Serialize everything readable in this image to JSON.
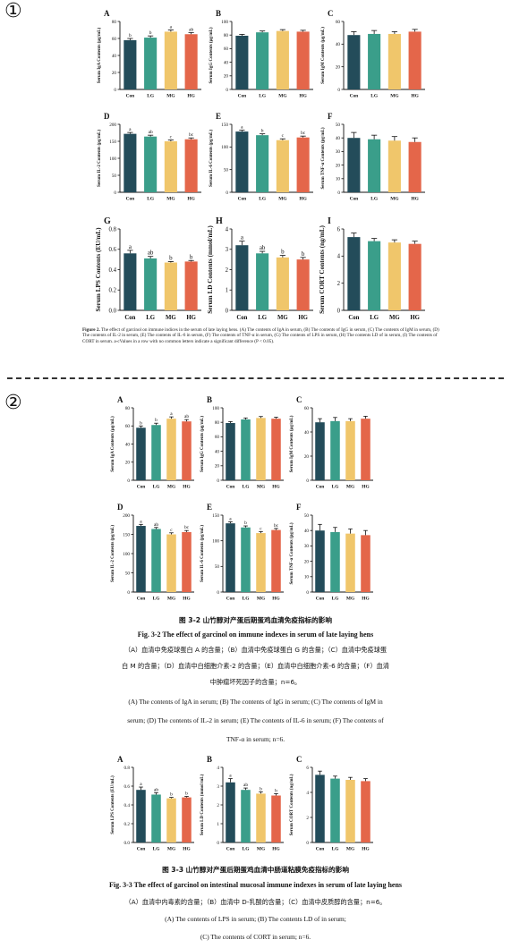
{
  "section1": {
    "marker": "①"
  },
  "section2": {
    "marker": "②"
  },
  "colors": [
    "#234c5a",
    "#3a9e8a",
    "#f0c66b",
    "#e4664a"
  ],
  "chart_data": [
    {
      "panel": "A",
      "group": "s1",
      "type": "bar",
      "ylabel": "Serum IgA Contents (μg/mL)",
      "categories": [
        "Con",
        "LG",
        "MG",
        "HG"
      ],
      "values": [
        58,
        61,
        68,
        65
      ],
      "errors": [
        2,
        2,
        2,
        2
      ],
      "letters": [
        "b",
        "b",
        "a",
        "ab"
      ],
      "ylim": [
        0,
        80
      ],
      "ticks": [
        0,
        20,
        40,
        60,
        80
      ]
    },
    {
      "panel": "B",
      "group": "s1",
      "type": "bar",
      "ylabel": "Serum IgG Contents (μg/mL)",
      "categories": [
        "Con",
        "LG",
        "MG",
        "HG"
      ],
      "values": [
        79,
        84,
        86,
        85
      ],
      "errors": [
        2,
        2,
        2,
        2
      ],
      "letters": [
        "",
        "",
        "",
        ""
      ],
      "ylim": [
        0,
        100
      ],
      "ticks": [
        0,
        20,
        40,
        60,
        80,
        100
      ]
    },
    {
      "panel": "C",
      "group": "s1",
      "type": "bar",
      "ylabel": "Serum IgM Contents (μg/mL)",
      "categories": [
        "Con",
        "LG",
        "MG",
        "HG"
      ],
      "values": [
        48,
        49,
        49,
        51
      ],
      "errors": [
        3,
        3,
        2,
        2
      ],
      "letters": [
        "",
        "",
        "",
        ""
      ],
      "ylim": [
        0,
        60
      ],
      "ticks": [
        0,
        20,
        40,
        60
      ]
    },
    {
      "panel": "D",
      "group": "s1",
      "type": "bar",
      "ylabel": "Serum IL-2 Contents (pg/mL)",
      "categories": [
        "Con",
        "LG",
        "MG",
        "HG"
      ],
      "values": [
        172,
        164,
        150,
        156
      ],
      "errors": [
        4,
        4,
        4,
        4
      ],
      "letters": [
        "a",
        "ab",
        "c",
        "bc"
      ],
      "ylim": [
        0,
        200
      ],
      "ticks": [
        0,
        50,
        100,
        150,
        200
      ]
    },
    {
      "panel": "E",
      "group": "s1",
      "type": "bar",
      "ylabel": "Serum IL-6 Contents (pg/mL)",
      "categories": [
        "Con",
        "LG",
        "MG",
        "HG"
      ],
      "values": [
        134,
        126,
        115,
        121
      ],
      "errors": [
        3,
        3,
        3,
        3
      ],
      "letters": [
        "a",
        "b",
        "c",
        "bc"
      ],
      "ylim": [
        0,
        150
      ],
      "ticks": [
        0,
        50,
        100,
        150
      ]
    },
    {
      "panel": "F",
      "group": "s1",
      "type": "bar",
      "ylabel": "Serum TNF-α Contents (pg/mL)",
      "categories": [
        "Con",
        "LG",
        "MG",
        "HG"
      ],
      "values": [
        40,
        39,
        38,
        37
      ],
      "errors": [
        4,
        3,
        3,
        3
      ],
      "letters": [
        "",
        "",
        "",
        ""
      ],
      "ylim": [
        0,
        50
      ],
      "ticks": [
        0,
        10,
        20,
        30,
        40,
        50
      ]
    },
    {
      "panel": "G",
      "group": "s1",
      "type": "bar",
      "ylabel": "Serum LPS Contents (EU/mL)",
      "categories": [
        "Con",
        "LG",
        "MG",
        "HG"
      ],
      "values": [
        0.56,
        0.51,
        0.47,
        0.48
      ],
      "errors": [
        0.03,
        0.02,
        0.01,
        0.01
      ],
      "letters": [
        "a",
        "ab",
        "b",
        "b"
      ],
      "ylim": [
        0,
        0.8
      ],
      "ticks": [
        "0.0",
        "0.2",
        "0.4",
        "0.6",
        "0.8"
      ]
    },
    {
      "panel": "H",
      "group": "s1",
      "type": "bar",
      "ylabel": "Serum LD Contents (mmol/mL)",
      "categories": [
        "Con",
        "LG",
        "MG",
        "HG"
      ],
      "values": [
        3.2,
        2.8,
        2.6,
        2.5
      ],
      "errors": [
        0.2,
        0.1,
        0.1,
        0.1
      ],
      "letters": [
        "a",
        "ab",
        "b",
        "b"
      ],
      "ylim": [
        0,
        4
      ],
      "ticks": [
        0,
        1,
        2,
        3,
        4
      ]
    },
    {
      "panel": "I",
      "group": "s1",
      "type": "bar",
      "ylabel": "Serum CORT Contents (ng/mL)",
      "categories": [
        "Con",
        "LG",
        "MG",
        "HG"
      ],
      "values": [
        5.4,
        5.1,
        5.0,
        4.9
      ],
      "errors": [
        0.3,
        0.2,
        0.2,
        0.2
      ],
      "letters": [
        "",
        "",
        "",
        ""
      ],
      "ylim": [
        0,
        6
      ],
      "ticks": [
        0,
        2,
        4,
        6
      ]
    },
    {
      "panel": "A",
      "group": "s2a",
      "type": "bar",
      "ylabel": "Serum IgA Contents (μg/mL)",
      "categories": [
        "Con",
        "LG",
        "MG",
        "HG"
      ],
      "values": [
        58,
        61,
        68,
        65
      ],
      "errors": [
        2,
        2,
        2,
        2
      ],
      "letters": [
        "b",
        "b",
        "a",
        "ab"
      ],
      "ylim": [
        0,
        80
      ],
      "ticks": [
        0,
        20,
        40,
        60,
        80
      ]
    },
    {
      "panel": "B",
      "group": "s2a",
      "type": "bar",
      "ylabel": "Serum IgG Contents (μg/mL)",
      "categories": [
        "Con",
        "LG",
        "MG",
        "HG"
      ],
      "values": [
        79,
        84,
        86,
        85
      ],
      "errors": [
        2,
        2,
        2,
        2
      ],
      "letters": [
        "",
        "",
        "",
        ""
      ],
      "ylim": [
        0,
        100
      ],
      "ticks": [
        0,
        20,
        40,
        60,
        80,
        100
      ]
    },
    {
      "panel": "C",
      "group": "s2a",
      "type": "bar",
      "ylabel": "Serum IgM Contents (μg/mL)",
      "categories": [
        "Con",
        "LG",
        "MG",
        "HG"
      ],
      "values": [
        48,
        49,
        49,
        51
      ],
      "errors": [
        3,
        3,
        2,
        2
      ],
      "letters": [
        "",
        "",
        "",
        ""
      ],
      "ylim": [
        0,
        60
      ],
      "ticks": [
        0,
        20,
        40,
        60
      ]
    },
    {
      "panel": "D",
      "group": "s2a",
      "type": "bar",
      "ylabel": "Serum IL-2 Contents (pg/mL)",
      "categories": [
        "Con",
        "LG",
        "MG",
        "HG"
      ],
      "values": [
        172,
        164,
        150,
        156
      ],
      "errors": [
        4,
        4,
        4,
        4
      ],
      "letters": [
        "a",
        "ab",
        "c",
        "bc"
      ],
      "ylim": [
        0,
        200
      ],
      "ticks": [
        0,
        50,
        100,
        150,
        200
      ]
    },
    {
      "panel": "E",
      "group": "s2a",
      "type": "bar",
      "ylabel": "Serum IL-6 Contents (pg/mL)",
      "categories": [
        "Con",
        "LG",
        "MG",
        "HG"
      ],
      "values": [
        134,
        126,
        115,
        121
      ],
      "errors": [
        3,
        3,
        3,
        3
      ],
      "letters": [
        "a",
        "b",
        "c",
        "bc"
      ],
      "ylim": [
        0,
        150
      ],
      "ticks": [
        0,
        50,
        100,
        150
      ]
    },
    {
      "panel": "F",
      "group": "s2a",
      "type": "bar",
      "ylabel": "Serum TNF-α Contents (pg/mL)",
      "categories": [
        "Con",
        "LG",
        "MG",
        "HG"
      ],
      "values": [
        40,
        39,
        38,
        37
      ],
      "errors": [
        4,
        3,
        3,
        3
      ],
      "letters": [
        "",
        "",
        "",
        ""
      ],
      "ylim": [
        0,
        50
      ],
      "ticks": [
        0,
        10,
        20,
        30,
        40,
        50
      ]
    },
    {
      "panel": "A",
      "group": "s2b",
      "type": "bar",
      "ylabel": "Serum LPS Contents (EU/mL)",
      "categories": [
        "Con",
        "LG",
        "MG",
        "HG"
      ],
      "values": [
        0.56,
        0.51,
        0.47,
        0.48
      ],
      "errors": [
        0.03,
        0.02,
        0.01,
        0.01
      ],
      "letters": [
        "a",
        "ab",
        "b",
        "b"
      ],
      "ylim": [
        0,
        0.8
      ],
      "ticks": [
        "0.0",
        "0.2",
        "0.4",
        "0.6",
        "0.8"
      ]
    },
    {
      "panel": "B",
      "group": "s2b",
      "type": "bar",
      "ylabel": "Serum LD Contents (mmol/mL)",
      "categories": [
        "Con",
        "LG",
        "MG",
        "HG"
      ],
      "values": [
        3.2,
        2.8,
        2.6,
        2.5
      ],
      "errors": [
        0.2,
        0.1,
        0.1,
        0.1
      ],
      "letters": [
        "a",
        "ab",
        "b",
        "b"
      ],
      "ylim": [
        0,
        4
      ],
      "ticks": [
        0,
        1,
        2,
        3,
        4
      ]
    },
    {
      "panel": "C",
      "group": "s2b",
      "type": "bar",
      "ylabel": "Serum CORT Contents (ng/mL)",
      "categories": [
        "Con",
        "LG",
        "MG",
        "HG"
      ],
      "values": [
        5.4,
        5.1,
        5.0,
        4.9
      ],
      "errors": [
        0.3,
        0.2,
        0.2,
        0.2
      ],
      "letters": [
        "",
        "",
        "",
        ""
      ],
      "ylim": [
        0,
        6
      ],
      "ticks": [
        0,
        2,
        4,
        6
      ]
    }
  ],
  "caption1": {
    "label": "Figure 2.",
    "text": "The effect of garcinol on immune indices in the serum of late laying hens. (A) The contents of IgA in serum, (B) The contents of IgG in serum, (C) The contents of IgM in serum, (D) The contents of IL-2 in serum, (E) The contents of IL-6 in serum, (F) The contents of TNF-α in serum, (G) The contents of LPS in serum, (H) The contents LD of in serum, (I) The contents of CORT in serum. a-cValues in a row with no common letters indicate a significant difference (P < 0.05)."
  },
  "fig32": {
    "title_cn": "图 3-2 山竹醇对产蛋后期蛋鸡血清免疫指标的影响",
    "title_en": "Fig. 3-2 The effect of garcinol on immune indexes in serum of late laying hens",
    "desc_cn_1": "（A）血清中免疫球蛋白 A 的含量；（B）血清中免疫球蛋白 G 的含量；（C）血清中免疫球蛋",
    "desc_cn_2": "白 M 的含量；（D）血清中白细胞介素-2 的含量；（E）血清中白细胞介素-6 的含量；（F）血清",
    "desc_cn_3": "中肿瘤坏死因子的含量；n=6。",
    "desc_en_1": "(A) The contents of IgA in serum; (B) The contents of IgG in serum; (C) The contents of IgM in",
    "desc_en_2": "serum; (D) The contents of IL-2 in serum; (E) The contents of IL-6 in serum; (F) The contents of",
    "desc_en_3": "TNF-α in serum; n=6."
  },
  "fig33": {
    "title_cn": "图 3-3 山竹醇对产蛋后期蛋鸡血清中肠道粘膜免疫指标的影响",
    "title_en": "Fig. 3-3 The effect of garcinol on intestinal mucosal immune indexes in serum of late laying hens",
    "desc_cn_1": "（A）血清中内毒素的含量；（B）血清中 D-乳酸的含量；（C）血清中皮质醇的含量；n=6。",
    "desc_en_1": "(A) The contents of LPS in serum; (B) The contents LD of in serum;",
    "desc_en_2": "(C) The contents of CORT in serum; n=6."
  }
}
